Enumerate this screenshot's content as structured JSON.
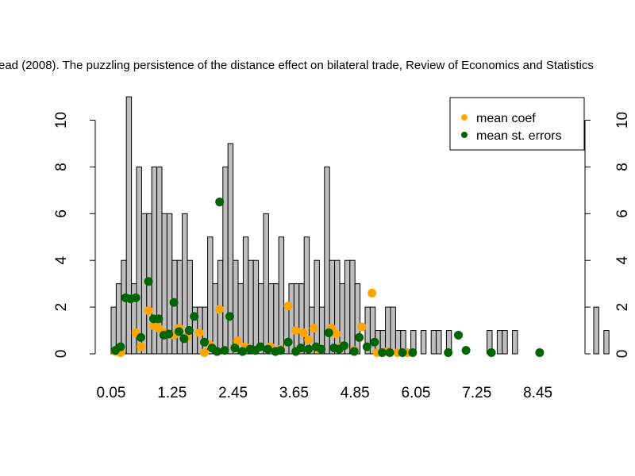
{
  "chart_data": {
    "type": "bar",
    "title": "ead (2008). The puzzling persistence of the distance effect on bilateral trade, Review of Economics and Statistics",
    "xlabel": "",
    "ylabel": "",
    "xlim": [
      0,
      9.05
    ],
    "ylim": [
      0,
      11
    ],
    "x_ticks": [
      "0.05",
      "1.25",
      "2.45",
      "3.65",
      "4.85",
      "6.05",
      "7.25",
      "8.45"
    ],
    "y_ticks": [
      "0",
      "2",
      "4",
      "6",
      "8",
      "10"
    ],
    "bar_color": "#bebebe",
    "bins": {
      "start": 0.05,
      "width": 0.1,
      "counts": [
        2,
        3,
        4,
        11,
        3,
        8,
        6,
        6,
        8,
        8,
        6,
        6,
        4,
        4,
        6,
        4,
        2,
        2,
        2,
        5,
        3,
        4,
        8,
        9,
        4,
        3,
        5,
        4,
        4,
        3,
        6,
        3,
        3,
        5,
        2,
        3,
        3,
        3,
        5,
        2,
        4,
        2,
        8,
        4,
        4,
        3,
        4,
        4,
        3,
        0,
        2,
        2,
        1,
        1,
        2,
        2,
        1,
        1,
        0,
        1,
        0,
        1,
        0,
        1,
        1,
        0,
        1,
        0,
        0,
        0,
        0,
        0,
        0,
        0,
        1,
        0,
        1,
        1,
        0,
        1,
        0,
        0,
        0,
        0,
        0,
        0,
        0,
        0,
        0,
        0,
        0,
        0,
        0,
        0,
        0,
        2,
        0,
        1
      ]
    },
    "series": [
      {
        "name": "mean coef",
        "color": "#ffa500",
        "points": [
          [
            0.05,
            0.1
          ],
          [
            0.15,
            0.05
          ],
          [
            0.45,
            0.9
          ],
          [
            0.55,
            0.3
          ],
          [
            0.7,
            1.85
          ],
          [
            0.8,
            1.2
          ],
          [
            0.9,
            1.1
          ],
          [
            1.0,
            0.9
          ],
          [
            1.2,
            0.8
          ],
          [
            1.3,
            1.1
          ],
          [
            1.45,
            0.7
          ],
          [
            1.7,
            0.9
          ],
          [
            1.8,
            0.05
          ],
          [
            1.9,
            0.4
          ],
          [
            2.1,
            1.9
          ],
          [
            2.45,
            0.55
          ],
          [
            2.6,
            0.3
          ],
          [
            3.1,
            0.3
          ],
          [
            3.3,
            0.2
          ],
          [
            3.45,
            2.05
          ],
          [
            3.6,
            1.0
          ],
          [
            3.75,
            0.9
          ],
          [
            3.85,
            0.6
          ],
          [
            3.95,
            1.1
          ],
          [
            4.05,
            0.2
          ],
          [
            4.3,
            1.1
          ],
          [
            4.4,
            0.85
          ],
          [
            4.5,
            0.3
          ],
          [
            4.75,
            0.15
          ],
          [
            4.9,
            1.15
          ],
          [
            5.1,
            2.6
          ],
          [
            5.2,
            0.05
          ],
          [
            5.4,
            0.1
          ],
          [
            5.6,
            0.05
          ],
          [
            5.8,
            0.05
          ]
        ]
      },
      {
        "name": "mean st. errors",
        "color": "#006400",
        "points": [
          [
            0.05,
            0.15
          ],
          [
            0.15,
            0.3
          ],
          [
            0.25,
            2.4
          ],
          [
            0.35,
            2.35
          ],
          [
            0.45,
            2.4
          ],
          [
            0.55,
            0.7
          ],
          [
            0.7,
            3.1
          ],
          [
            0.8,
            1.5
          ],
          [
            0.9,
            1.5
          ],
          [
            1.0,
            0.8
          ],
          [
            1.1,
            0.85
          ],
          [
            1.2,
            2.2
          ],
          [
            1.3,
            0.95
          ],
          [
            1.4,
            0.65
          ],
          [
            1.5,
            1.0
          ],
          [
            1.6,
            1.6
          ],
          [
            1.8,
            0.5
          ],
          [
            1.95,
            0.25
          ],
          [
            2.05,
            0.1
          ],
          [
            2.1,
            6.5
          ],
          [
            2.2,
            0.15
          ],
          [
            2.3,
            1.6
          ],
          [
            2.4,
            0.25
          ],
          [
            2.55,
            0.1
          ],
          [
            2.7,
            0.2
          ],
          [
            2.8,
            0.15
          ],
          [
            2.9,
            0.3
          ],
          [
            3.05,
            0.2
          ],
          [
            3.2,
            0.1
          ],
          [
            3.3,
            0.15
          ],
          [
            3.45,
            0.5
          ],
          [
            3.6,
            0.1
          ],
          [
            3.7,
            0.25
          ],
          [
            3.85,
            0.2
          ],
          [
            4.0,
            0.3
          ],
          [
            4.1,
            0.2
          ],
          [
            4.25,
            0.9
          ],
          [
            4.35,
            0.25
          ],
          [
            4.45,
            0.2
          ],
          [
            4.55,
            0.35
          ],
          [
            4.75,
            0.1
          ],
          [
            4.85,
            0.7
          ],
          [
            5.0,
            0.3
          ],
          [
            5.15,
            0.5
          ],
          [
            5.3,
            0.05
          ],
          [
            5.45,
            0.05
          ],
          [
            5.7,
            0.05
          ],
          [
            5.9,
            0.05
          ],
          [
            6.6,
            0.05
          ],
          [
            6.8,
            0.8
          ],
          [
            6.95,
            0.15
          ],
          [
            7.45,
            0.05
          ],
          [
            8.4,
            0.05
          ]
        ]
      }
    ],
    "legend": {
      "position": "top-right",
      "entries": [
        "mean coef",
        "mean st. errors"
      ]
    }
  }
}
